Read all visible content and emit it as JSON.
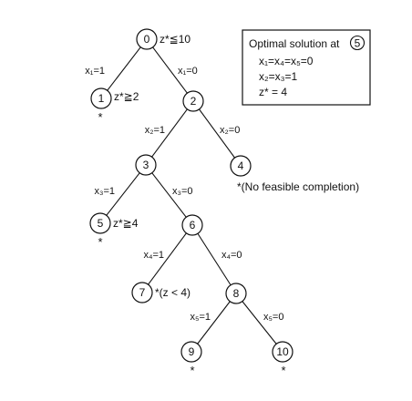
{
  "legend": {
    "title": "Optimal solution at",
    "title_node": "5",
    "lines": [
      "x₁=x₄=x₅=0",
      "x₂=x₃=1",
      "z* = 4"
    ]
  },
  "nodes": [
    {
      "id": "0",
      "annotation": "z*≦10"
    },
    {
      "id": "1",
      "annotation": "z*≧2",
      "star": "*"
    },
    {
      "id": "2",
      "annotation": ""
    },
    {
      "id": "3",
      "annotation": ""
    },
    {
      "id": "4",
      "annotation": "*(No feasible completion)"
    },
    {
      "id": "5",
      "annotation": "z*≧4",
      "star": "*"
    },
    {
      "id": "6",
      "annotation": ""
    },
    {
      "id": "7",
      "annotation": "*(z < 4)"
    },
    {
      "id": "8",
      "annotation": ""
    },
    {
      "id": "9",
      "annotation": "",
      "star": "*"
    },
    {
      "id": "10",
      "annotation": "",
      "star": "*"
    }
  ],
  "edges": [
    {
      "from": "0",
      "to": "1",
      "label": "x₁=1"
    },
    {
      "from": "0",
      "to": "2",
      "label": "x₁=0"
    },
    {
      "from": "2",
      "to": "3",
      "label": "x₂=1"
    },
    {
      "from": "2",
      "to": "4",
      "label": "x₂=0"
    },
    {
      "from": "3",
      "to": "5",
      "label": "x₃=1"
    },
    {
      "from": "3",
      "to": "6",
      "label": "x₃=0"
    },
    {
      "from": "6",
      "to": "7",
      "label": "x₄=1"
    },
    {
      "from": "6",
      "to": "8",
      "label": "x₄=0"
    },
    {
      "from": "8",
      "to": "9",
      "label": "x₅=1"
    },
    {
      "from": "8",
      "to": "10",
      "label": "x₅=0"
    }
  ]
}
